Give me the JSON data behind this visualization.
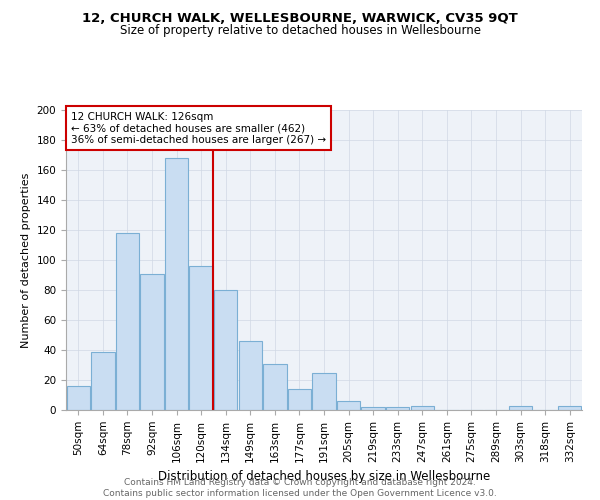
{
  "title": "12, CHURCH WALK, WELLESBOURNE, WARWICK, CV35 9QT",
  "subtitle": "Size of property relative to detached houses in Wellesbourne",
  "xlabel": "Distribution of detached houses by size in Wellesbourne",
  "ylabel": "Number of detached properties",
  "footer_line1": "Contains HM Land Registry data © Crown copyright and database right 2024.",
  "footer_line2": "Contains public sector information licensed under the Open Government Licence v3.0.",
  "categories": [
    "50sqm",
    "64sqm",
    "78sqm",
    "92sqm",
    "106sqm",
    "120sqm",
    "134sqm",
    "149sqm",
    "163sqm",
    "177sqm",
    "191sqm",
    "205sqm",
    "219sqm",
    "233sqm",
    "247sqm",
    "261sqm",
    "275sqm",
    "289sqm",
    "303sqm",
    "318sqm",
    "332sqm"
  ],
  "values": [
    16,
    39,
    118,
    91,
    168,
    96,
    80,
    46,
    31,
    14,
    25,
    6,
    2,
    2,
    3,
    0,
    0,
    0,
    3,
    0,
    3
  ],
  "bar_color": "#c9ddf2",
  "bar_edge_color": "#7bafd4",
  "property_label": "12 CHURCH WALK: 126sqm",
  "annotation_line1": "← 63% of detached houses are smaller (462)",
  "annotation_line2": "36% of semi-detached houses are larger (267) →",
  "vline_color": "#cc0000",
  "annotation_box_facecolor": "#ffffff",
  "annotation_box_edgecolor": "#cc0000",
  "grid_color": "#d0d8e4",
  "bg_color": "#eef2f8",
  "ylim": [
    0,
    200
  ],
  "yticks": [
    0,
    20,
    40,
    60,
    80,
    100,
    120,
    140,
    160,
    180,
    200
  ],
  "vline_x_index": 5,
  "title_fontsize": 9.5,
  "subtitle_fontsize": 8.5,
  "xlabel_fontsize": 8.5,
  "ylabel_fontsize": 8,
  "tick_fontsize": 7.5,
  "annotation_fontsize": 7.5,
  "footer_fontsize": 6.5
}
